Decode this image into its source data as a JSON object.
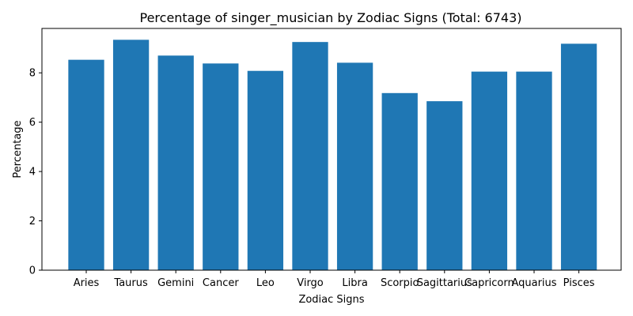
{
  "chart_data": {
    "type": "bar",
    "title": "Percentage of singer_musician by Zodiac Signs (Total: 6743)",
    "xlabel": "Zodiac Signs",
    "ylabel": "Percentage",
    "categories": [
      "Aries",
      "Taurus",
      "Gemini",
      "Cancer",
      "Leo",
      "Virgo",
      "Libra",
      "Scorpio",
      "Sagittarius",
      "Capricorn",
      "Aquarius",
      "Pisces"
    ],
    "values": [
      8.53,
      9.34,
      8.7,
      8.38,
      8.08,
      9.25,
      8.41,
      7.18,
      6.85,
      8.05,
      8.05,
      9.18
    ],
    "ylim": [
      0,
      9.8
    ],
    "yticks": [
      0,
      2,
      4,
      6,
      8
    ],
    "bar_color": "#1f77b4",
    "grid": false,
    "legend": "none"
  }
}
